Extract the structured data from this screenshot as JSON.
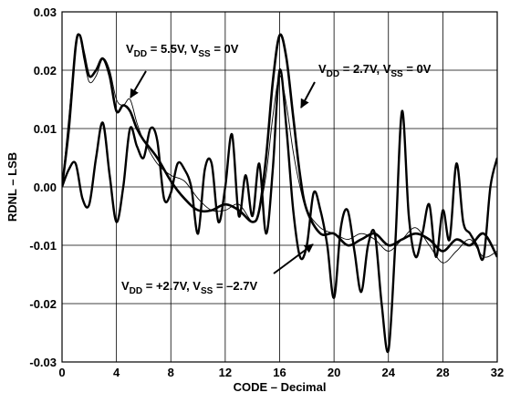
{
  "chart_data": {
    "type": "line",
    "xlabel": "CODE – Decimal",
    "ylabel": "RDNL – LSB",
    "xlim": [
      0,
      32
    ],
    "ylim": [
      -0.03,
      0.03
    ],
    "grid": true,
    "x_ticks": [
      "0",
      "4",
      "8",
      "12",
      "16",
      "20",
      "24",
      "28",
      "32"
    ],
    "y_ticks": [
      "0.03",
      "0.02",
      "0.01",
      "0.00",
      "-0.01",
      "-0.02",
      "-0.03"
    ],
    "annotations": [
      {
        "text": "VDD = 5.5V, VSS = 0V",
        "parts": [
          [
            "V",
            ""
          ],
          [
            "DD",
            "sub"
          ],
          [
            " = 5.5V, V",
            ""
          ],
          [
            "SS",
            "sub"
          ],
          [
            " = 0V",
            ""
          ]
        ]
      },
      {
        "text": "VDD = 2.7V, VSS = 0V",
        "parts": [
          [
            "V",
            ""
          ],
          [
            "DD",
            "sub"
          ],
          [
            " = 2.7V, V",
            ""
          ],
          [
            "SS",
            "sub"
          ],
          [
            " = 0V",
            ""
          ]
        ]
      },
      {
        "text": "VDD = +2.7V, VSS = –2.7V",
        "parts": [
          [
            "V",
            ""
          ],
          [
            "DD",
            "sub"
          ],
          [
            " = +2.7V, V",
            ""
          ],
          [
            "SS",
            "sub"
          ],
          [
            " = –2.7V",
            ""
          ]
        ]
      }
    ],
    "series": [
      {
        "x": [
          0,
          0.5,
          1,
          1.3,
          1.6,
          2,
          2.5,
          3,
          3.5,
          4,
          4.5,
          5,
          5.5,
          6,
          7,
          8,
          9,
          10,
          11,
          12,
          13,
          14,
          14.5,
          15,
          15.5,
          16,
          16.5,
          17,
          17.5,
          18,
          19,
          20,
          21,
          22,
          23,
          24,
          25,
          26,
          27,
          28,
          29,
          30,
          31,
          32
        ],
        "values": [
          0.0,
          0.01,
          0.024,
          0.026,
          0.023,
          0.019,
          0.02,
          0.022,
          0.019,
          0.013,
          0.014,
          0.013,
          0.01,
          0.008,
          0.005,
          0.001,
          -0.002,
          -0.004,
          -0.004,
          -0.003,
          -0.004,
          -0.006,
          -0.004,
          0.005,
          0.018,
          0.026,
          0.022,
          0.012,
          0.002,
          -0.004,
          -0.008,
          -0.008,
          -0.01,
          -0.009,
          -0.008,
          -0.01,
          -0.009,
          -0.008,
          -0.009,
          -0.011,
          -0.009,
          -0.01,
          -0.008,
          -0.012
        ]
      },
      {
        "x": [
          0,
          0.5,
          1,
          1.3,
          1.6,
          2,
          2.5,
          3,
          3.5,
          4,
          4.5,
          5,
          5.5,
          6,
          7,
          8,
          9,
          10,
          11,
          12,
          13,
          14,
          14.5,
          15,
          15.5,
          16,
          16.5,
          17,
          17.5,
          18,
          19,
          20,
          21,
          22,
          23,
          24,
          25,
          26,
          27,
          28,
          29,
          30,
          31,
          32
        ],
        "values": [
          0.0,
          0.012,
          0.024,
          0.026,
          0.022,
          0.018,
          0.019,
          0.022,
          0.02,
          0.015,
          0.014,
          0.015,
          0.011,
          0.008,
          0.004,
          0.002,
          0.001,
          -0.002,
          -0.004,
          -0.004,
          -0.003,
          -0.006,
          -0.004,
          0.002,
          0.012,
          0.019,
          0.014,
          0.006,
          0.0,
          -0.004,
          -0.007,
          -0.008,
          -0.009,
          -0.008,
          -0.009,
          -0.011,
          -0.009,
          -0.007,
          -0.01,
          -0.013,
          -0.011,
          -0.009,
          -0.012,
          -0.011
        ]
      },
      {
        "x": [
          0,
          0.5,
          1,
          1.5,
          2,
          2.5,
          3,
          3.5,
          4,
          4.5,
          5,
          5.5,
          6,
          6.5,
          7,
          7.5,
          8,
          8.5,
          9,
          9.5,
          10,
          10.5,
          11,
          11.5,
          12,
          12.5,
          13,
          13.5,
          14,
          14.5,
          15,
          15.5,
          16,
          16.5,
          17,
          17.5,
          18,
          18.5,
          19,
          19.5,
          20,
          20.5,
          21,
          21.5,
          22,
          22.5,
          23,
          23.5,
          24,
          24.5,
          25,
          25.5,
          26,
          26.5,
          27,
          27.5,
          28,
          28.5,
          29,
          29.5,
          30,
          30.5,
          31,
          31.5,
          32
        ],
        "values": [
          0.0,
          0.003,
          0.004,
          -0.002,
          -0.003,
          0.005,
          0.011,
          0.002,
          -0.006,
          0.0,
          0.01,
          0.007,
          0.005,
          0.01,
          0.008,
          -0.002,
          -0.001,
          0.004,
          0.003,
          0.0,
          -0.008,
          0.003,
          0.004,
          -0.006,
          0.0,
          0.009,
          -0.005,
          0.002,
          -0.005,
          0.004,
          -0.008,
          0.003,
          0.02,
          0.01,
          -0.004,
          -0.012,
          -0.01,
          -0.001,
          -0.004,
          -0.01,
          -0.019,
          -0.007,
          -0.004,
          -0.011,
          -0.018,
          -0.01,
          -0.008,
          -0.02,
          -0.028,
          -0.01,
          0.013,
          -0.005,
          -0.012,
          -0.008,
          -0.003,
          -0.012,
          -0.004,
          -0.009,
          0.004,
          -0.006,
          -0.008,
          -0.01,
          -0.012,
          0.0,
          0.005
        ]
      }
    ]
  }
}
